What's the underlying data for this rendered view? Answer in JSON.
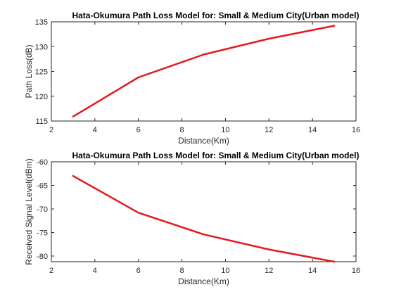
{
  "chart_data": [
    {
      "type": "line",
      "title": "Hata-Okumura Path Loss Model for: Small & Medium City(Urban model)",
      "xlabel": "Distance(Km)",
      "ylabel": "Path Loss(dB)",
      "xlim": [
        2,
        16
      ],
      "ylim": [
        115,
        135
      ],
      "xticks": [
        2,
        4,
        6,
        8,
        10,
        12,
        14,
        16
      ],
      "yticks": [
        115,
        120,
        125,
        130,
        135
      ],
      "x": [
        3,
        6,
        9,
        12,
        15
      ],
      "series": [
        {
          "values": [
            115.9,
            123.8,
            128.4,
            131.6,
            134.2
          ],
          "color": "#e31a1c"
        }
      ],
      "grid": false,
      "legend": "none"
    },
    {
      "type": "line",
      "title": "Hata-Okumura Path Loss Model for: Small & Medium City(Urban model)",
      "xlabel": "Distance(Km)",
      "ylabel": "Received Signal Level(dBm)",
      "xlim": [
        2,
        16
      ],
      "ylim": [
        -81.2,
        -60
      ],
      "xticks": [
        2,
        4,
        6,
        8,
        10,
        12,
        14,
        16
      ],
      "yticks": [
        -60,
        -65,
        -70,
        -75,
        -80
      ],
      "x": [
        3,
        6,
        9,
        12,
        15
      ],
      "series": [
        {
          "values": [
            -63.0,
            -70.8,
            -75.4,
            -78.6,
            -81.2
          ],
          "color": "#e31a1c"
        }
      ],
      "grid": false,
      "legend": "none"
    }
  ]
}
